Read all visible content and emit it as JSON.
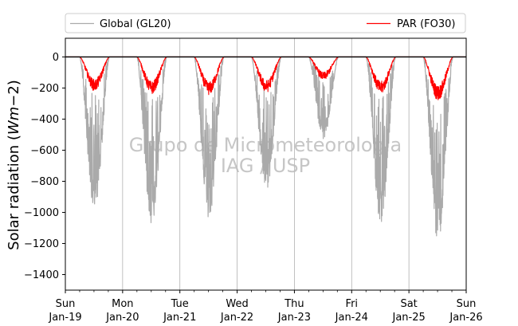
{
  "chart_data": {
    "type": "line",
    "title": "",
    "ylabel": "Solar radiation (Wm−2)",
    "ylabel_parts": {
      "main": "Solar radiation (",
      "italic": "Wm",
      "minus": "−2",
      "close": ")"
    },
    "ylim": [
      -1500,
      120
    ],
    "yticks": [
      0,
      -200,
      -400,
      -600,
      -800,
      -1000,
      -1200,
      -1400
    ],
    "xlim": [
      "2020-01-19",
      "2020-01-26"
    ],
    "xticks": [
      {
        "day": "Sun",
        "date": "Jan-19"
      },
      {
        "day": "Mon",
        "date": "Jan-20"
      },
      {
        "day": "Tue",
        "date": "Jan-21"
      },
      {
        "day": "Wed",
        "date": "Jan-22"
      },
      {
        "day": "Thu",
        "date": "Jan-23"
      },
      {
        "day": "Fri",
        "date": "Jan-24"
      },
      {
        "day": "Sat",
        "date": "Jan-25"
      },
      {
        "day": "Sun",
        "date": "Jan-26"
      }
    ],
    "grid": "vertical",
    "legend_position": "top",
    "watermark": [
      "Grupo de Micrometeorologia",
      "IAG / USP"
    ],
    "series": [
      {
        "name": "Global (GL20)",
        "color": "#aaaaaa",
        "daily_minimum": [
          -980,
          -1080,
          -1050,
          -860,
          -530,
          -1070,
          -1190
        ]
      },
      {
        "name": "PAR (FO30)",
        "color": "#ff0000",
        "daily_minimum": [
          -220,
          -240,
          -245,
          -230,
          -150,
          -240,
          -280
        ]
      }
    ]
  }
}
